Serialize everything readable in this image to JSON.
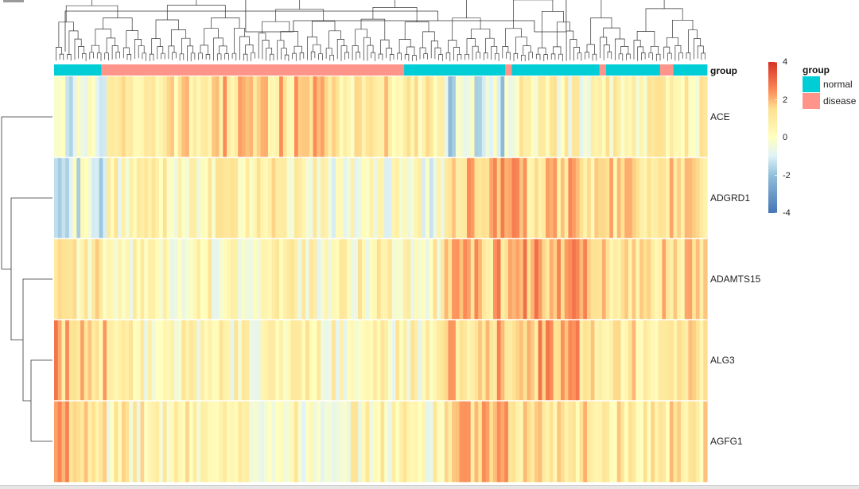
{
  "chart_data": {
    "type": "heatmap",
    "title": "",
    "rows": [
      "ACE",
      "ADGRD1",
      "ADAMTS15",
      "ALG3",
      "AGFG1"
    ],
    "annotation": {
      "label": "group",
      "legend_title": "group",
      "levels": [
        {
          "name": "normal",
          "color": "#00CED6"
        },
        {
          "name": "disease",
          "color": "#FF948A"
        }
      ]
    },
    "colorbar": {
      "ticks": [
        "4",
        "2",
        "0",
        "-2",
        "-4"
      ],
      "range": [
        -4,
        4
      ],
      "colors": {
        "low": "#4575B4",
        "mid": "#FFFFBF",
        "high": "#D73027"
      }
    },
    "column_groups": [
      {
        "group": "normal",
        "n": 14
      },
      {
        "group": "disease",
        "n": 90
      },
      {
        "group": "normal",
        "n": 30
      },
      {
        "group": "disease",
        "n": 2
      },
      {
        "group": "normal",
        "n": 26
      },
      {
        "group": "disease",
        "n": 2
      },
      {
        "group": "normal",
        "n": 16
      },
      {
        "group": "disease",
        "n": 4
      },
      {
        "group": "normal",
        "n": 10
      }
    ],
    "column_blocks": [
      {
        "n": 14,
        "means": [
          -0.6,
          -0.9,
          0.6,
          1.6,
          1.8
        ],
        "spread": 1.0
      },
      {
        "n": 30,
        "means": [
          0.9,
          0.3,
          0.3,
          0.4,
          0.5
        ],
        "spread": 0.9
      },
      {
        "n": 30,
        "means": [
          1.4,
          0.5,
          0.2,
          0.3,
          0.1
        ],
        "spread": 0.9
      },
      {
        "n": 30,
        "means": [
          0.9,
          -0.2,
          0.4,
          0.3,
          0.3
        ],
        "spread": 0.9
      },
      {
        "n": 20,
        "means": [
          -1.0,
          1.7,
          1.7,
          1.6,
          1.5
        ],
        "spread": 0.9
      },
      {
        "n": 20,
        "means": [
          0.3,
          1.5,
          2.0,
          1.9,
          1.3
        ],
        "spread": 0.9
      },
      {
        "n": 30,
        "means": [
          0.6,
          1.4,
          1.3,
          1.2,
          1.0
        ],
        "spread": 0.8
      }
    ],
    "xlabel": "",
    "ylabel": ""
  }
}
